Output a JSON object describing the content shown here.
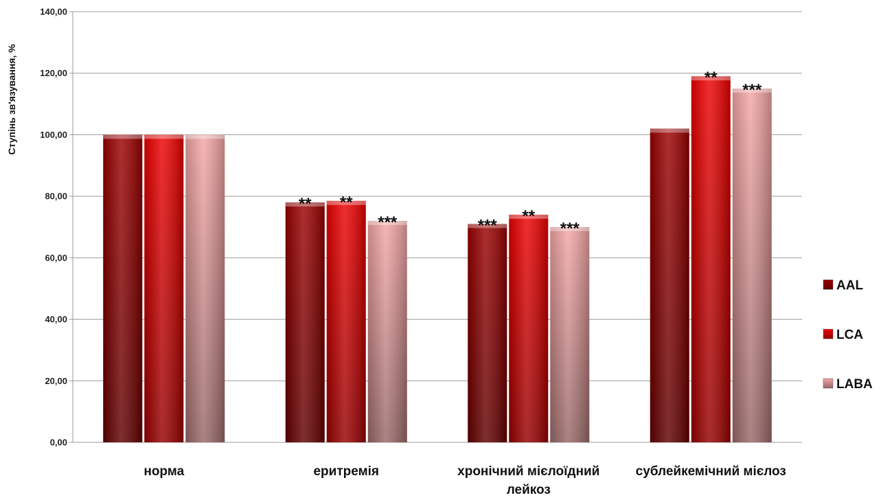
{
  "chart_data": {
    "type": "bar",
    "title": "",
    "xlabel": "",
    "ylabel": "Ступінь зв'язування, %",
    "ylim": [
      0,
      140
    ],
    "ytick_step": 20,
    "ytick_labels": [
      "0,00",
      "20,00",
      "40,00",
      "60,00",
      "80,00",
      "100,00",
      "120,00",
      "140,00"
    ],
    "grid": true,
    "legend_position": "right",
    "categories": [
      [
        "норма"
      ],
      [
        "еритремія"
      ],
      [
        "хронічний мієлоїдний",
        "лейкоз"
      ],
      [
        "сублейкемічний мієлоз"
      ]
    ],
    "series": [
      {
        "name": "AAL",
        "color": "#9b0000",
        "values": [
          100,
          78,
          71,
          102
        ],
        "markers": [
          "",
          "**",
          "***",
          ""
        ]
      },
      {
        "name": "LCA",
        "color": "#ee0000",
        "values": [
          100,
          78.5,
          74,
          119
        ],
        "markers": [
          "",
          "**",
          "**",
          "**"
        ]
      },
      {
        "name": "LABA",
        "color": "#f4a6a6",
        "values": [
          100,
          72,
          70,
          115
        ],
        "markers": [
          "",
          "***",
          "***",
          "***"
        ]
      }
    ]
  }
}
